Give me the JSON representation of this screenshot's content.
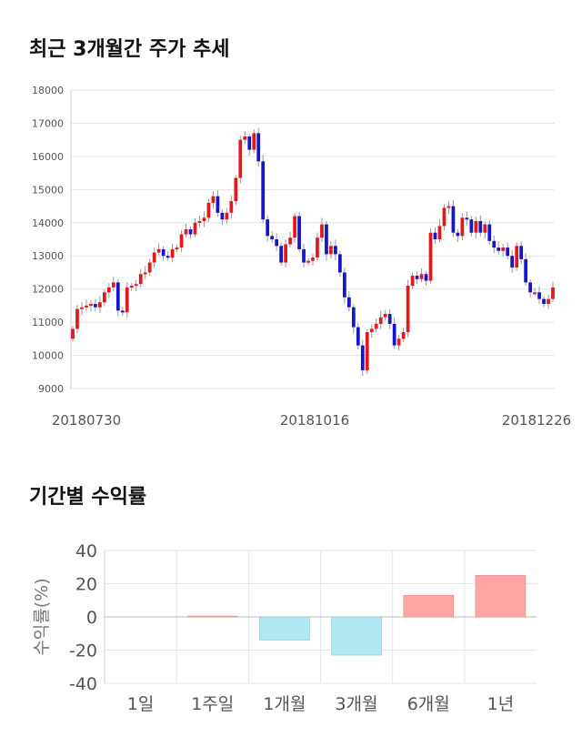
{
  "section1": {
    "title": "최근 3개월간 주가 추세"
  },
  "section2": {
    "title": "기간별 수익률"
  },
  "colors": {
    "up": "#e0191d",
    "down": "#1515cc",
    "positive_bar": "#ffa5a5",
    "negative_bar": "#aee9f2",
    "grid": "#e6e6e6"
  },
  "chart_data": [
    {
      "type": "candlestick",
      "title": "최근 3개월간 주가 추세",
      "ylim": [
        9000,
        18000
      ],
      "yticks": [
        18000,
        17000,
        16000,
        15000,
        14000,
        13000,
        12000,
        11000,
        10000,
        9000
      ],
      "xtick_labels": [
        "20180730",
        "20181016",
        "20181226"
      ],
      "grid": true,
      "approx_close_series": [
        10800,
        11400,
        11450,
        11500,
        11550,
        11450,
        11600,
        11900,
        12050,
        12200,
        11350,
        11300,
        12050,
        12100,
        12150,
        12450,
        12500,
        12800,
        13100,
        13200,
        13000,
        12950,
        13200,
        13250,
        13650,
        13800,
        13650,
        14000,
        14050,
        14150,
        14600,
        14800,
        14300,
        14100,
        14300,
        14650,
        15350,
        16500,
        16600,
        16200,
        16700,
        15850,
        14100,
        13600,
        13500,
        13300,
        12800,
        13350,
        13550,
        14200,
        13200,
        12800,
        12850,
        12950,
        13550,
        13950,
        13050,
        13300,
        13050,
        12500,
        11750,
        11450,
        10850,
        10300,
        9550,
        10700,
        10800,
        10950,
        11150,
        11250,
        10950,
        10300,
        10500,
        10700,
        12100,
        12400,
        12300,
        12450,
        12250,
        13700,
        13500,
        13900,
        14450,
        14500,
        13700,
        13600,
        14150,
        14100,
        13700,
        14050,
        13700,
        13950,
        13450,
        13250,
        13150,
        13250,
        13000,
        12650,
        13300,
        12900,
        12200,
        11900,
        11900,
        11700,
        11550,
        11700,
        12050
      ]
    },
    {
      "type": "bar",
      "title": "기간별 수익률",
      "ylabel": "수익률(%)",
      "categories": [
        "1일",
        "1주일",
        "1개월",
        "3개월",
        "6개월",
        "1년"
      ],
      "values": [
        0,
        0.5,
        -14,
        -23,
        13,
        25
      ],
      "ylim": [
        -40,
        40
      ],
      "yticks": [
        40,
        20,
        0,
        -20,
        -40
      ],
      "grid": true
    }
  ]
}
